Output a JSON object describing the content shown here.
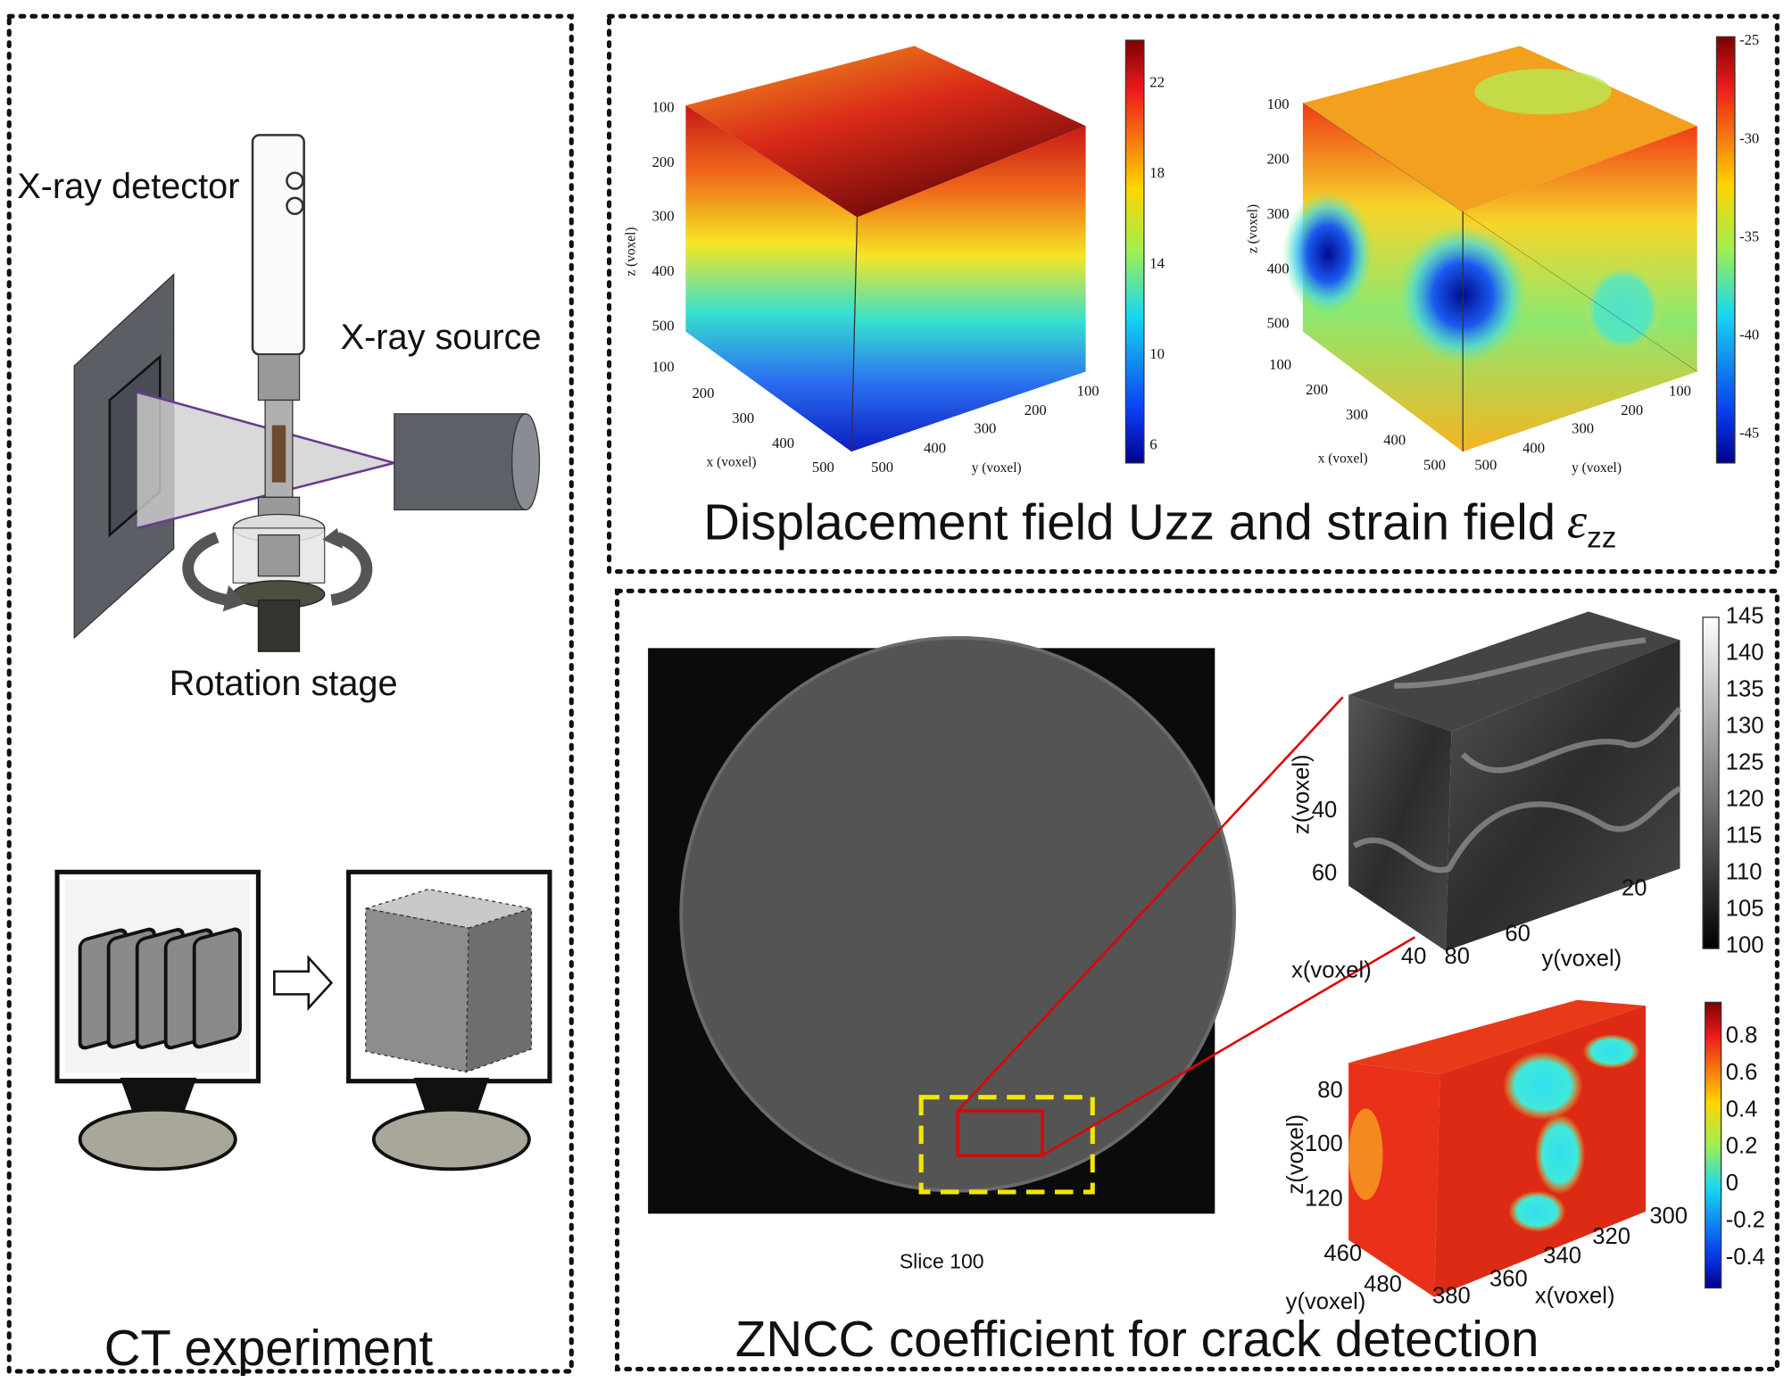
{
  "ct_experiment": {
    "labels": {
      "detector": "X-ray detector",
      "source": "X-ray source",
      "stage": "Rotation stage"
    },
    "caption": "CT experiment"
  },
  "fields": {
    "caption": {
      "text": "Displacement field Uzz and strain field",
      "symbol": "ε",
      "subscript": "zz"
    },
    "displacement": {
      "z_label": "z (voxel)",
      "x_label": "x (voxel)",
      "y_label": "y (voxel)",
      "z_ticks": [
        100,
        200,
        300,
        400,
        500
      ],
      "x_ticks": [
        100,
        200,
        300,
        400,
        500
      ],
      "y_ticks": [
        500,
        400,
        300,
        200,
        100
      ],
      "colorbar_ticks": [
        22,
        18,
        14,
        10,
        6
      ]
    },
    "strain": {
      "z_label": "z (voxel)",
      "x_label": "x (voxel)",
      "y_label": "y (voxel)",
      "z_ticks": [
        100,
        200,
        300,
        400,
        500
      ],
      "x_ticks": [
        100,
        200,
        300,
        400,
        500
      ],
      "y_ticks": [
        500,
        400,
        300,
        200,
        100
      ],
      "colorbar_ticks": [
        -25,
        -30,
        -35,
        -40,
        -45
      ]
    }
  },
  "zncc": {
    "caption": "ZNCC coefficient for crack detection",
    "slice_label": "Slice 100",
    "gray_cube": {
      "z_label": "z(voxel)",
      "x_label": "x(voxel)",
      "y_label": "y(voxel)",
      "z_ticks": [
        40,
        60
      ],
      "x_ticks": [
        40,
        80
      ],
      "y_ticks": [
        60,
        20
      ],
      "colorbar_ticks": [
        145,
        140,
        135,
        130,
        125,
        120,
        115,
        110,
        105,
        100
      ]
    },
    "zncc_cube": {
      "z_label": "z(voxel)",
      "x_label": "x(voxel)",
      "y_label": "y(voxel)",
      "z_ticks": [
        80,
        100,
        120
      ],
      "y_ticks": [
        460,
        480
      ],
      "x_ticks": [
        380,
        360,
        340,
        320,
        300
      ],
      "colorbar_ticks": [
        0.8,
        0.6,
        0.4,
        0.2,
        0,
        -0.2,
        -0.4
      ]
    }
  }
}
